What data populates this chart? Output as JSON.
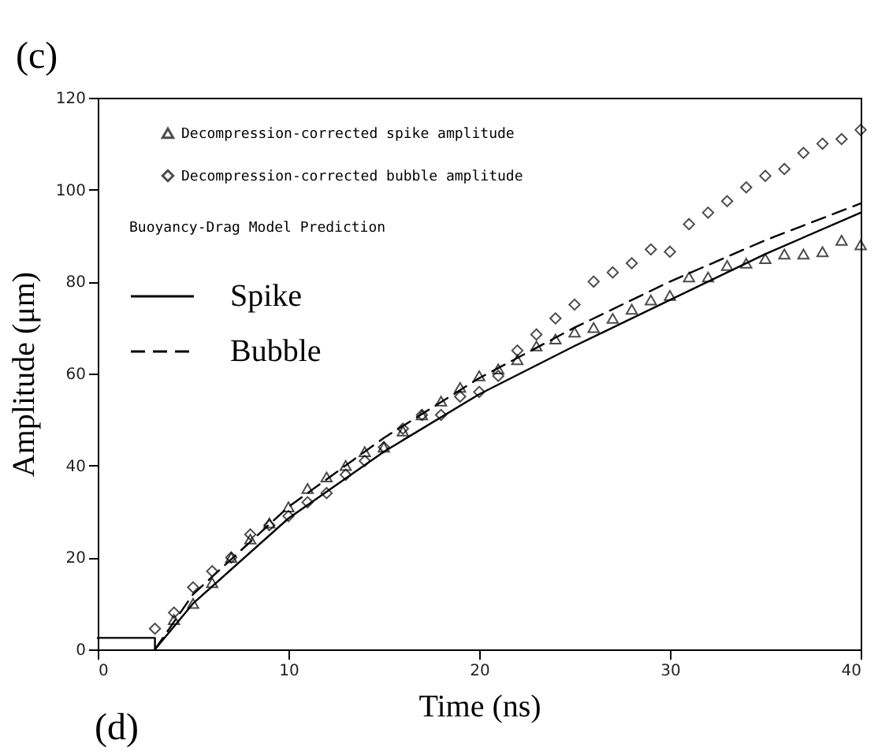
{
  "chart_data": {
    "type": "scatter",
    "xlabel": "Time (ns)",
    "ylabel": "Amplitude (μm)",
    "xlim": [
      0,
      40
    ],
    "ylim": [
      0,
      120
    ],
    "xticks": [
      0,
      10,
      20,
      30,
      40
    ],
    "yticks": [
      0,
      20,
      40,
      60,
      80,
      100,
      120
    ],
    "grid": false,
    "legend": "top left",
    "legend_title": "Buoyancy-Drag Model Prediction",
    "annotations": [
      "(c)",
      "(d)"
    ],
    "series": [
      {
        "name": "Decompression-corrected spike amplitude",
        "marker": "triangle",
        "color": "#000000",
        "x": [
          4,
          5,
          6,
          7,
          8,
          9,
          10,
          11,
          12,
          13,
          14,
          15,
          16,
          17,
          18,
          19,
          20,
          21,
          22,
          23,
          24,
          25,
          26,
          27,
          28,
          29,
          30,
          31,
          32,
          33,
          34,
          35,
          36,
          37,
          38,
          39,
          40
        ],
        "values": [
          6.5,
          10,
          14.5,
          20,
          24,
          27.5,
          31,
          35,
          37.5,
          40,
          43,
          44,
          47.5,
          51,
          54,
          57,
          59.5,
          61,
          63,
          66,
          67.5,
          69,
          70,
          72,
          74,
          76,
          77,
          81,
          81,
          83.5,
          84,
          85,
          86,
          86,
          86.5,
          89,
          88
        ]
      },
      {
        "name": "Decompression-corrected bubble amplitude",
        "marker": "diamond",
        "color": "#000000",
        "x": [
          3,
          4,
          5,
          6,
          7,
          8,
          9,
          10,
          11,
          12,
          13,
          14,
          15,
          16,
          17,
          18,
          19,
          20,
          21,
          22,
          23,
          24,
          25,
          26,
          27,
          28,
          29,
          30,
          31,
          32,
          33,
          34,
          35,
          36,
          37,
          38,
          39,
          40
        ],
        "values": [
          4.5,
          8,
          13.5,
          17,
          20,
          25,
          27,
          29,
          32,
          34,
          38,
          41,
          44,
          48,
          51,
          51,
          55,
          56,
          59.5,
          65,
          68.5,
          72,
          75,
          80,
          82,
          84,
          87,
          86.5,
          92.5,
          95,
          97.5,
          100.5,
          103,
          104.5,
          108,
          110,
          111,
          113
        ]
      },
      {
        "name": "Spike",
        "type": "line",
        "line_style": "solid",
        "color": "#000000",
        "x": [
          0,
          3,
          3,
          5,
          10,
          15,
          20,
          25,
          30,
          35,
          40
        ],
        "values": [
          2.5,
          2.5,
          0,
          10,
          28.5,
          43,
          55.5,
          66,
          76,
          86,
          95
        ]
      },
      {
        "name": "Bubble",
        "type": "line",
        "line_style": "dashed",
        "color": "#000000",
        "x": [
          3,
          5,
          10,
          15,
          20,
          25,
          30,
          35,
          40
        ],
        "values": [
          0,
          12,
          31,
          46,
          59,
          70,
          80,
          89,
          97
        ]
      }
    ]
  }
}
